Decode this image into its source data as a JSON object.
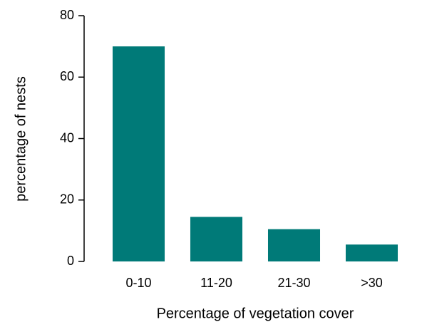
{
  "chart_data": {
    "type": "bar",
    "x_label": "Percentage of vegetation cover",
    "y_label": "percentage of nests",
    "categories": [
      "0-10",
      "11-20",
      "21-30",
      ">30"
    ],
    "values": [
      70,
      14.5,
      10.5,
      5.5
    ],
    "color": "#007a78",
    "ylim": [
      0,
      80
    ],
    "yticks": [
      0,
      20,
      40,
      60,
      80
    ],
    "grid": false
  }
}
